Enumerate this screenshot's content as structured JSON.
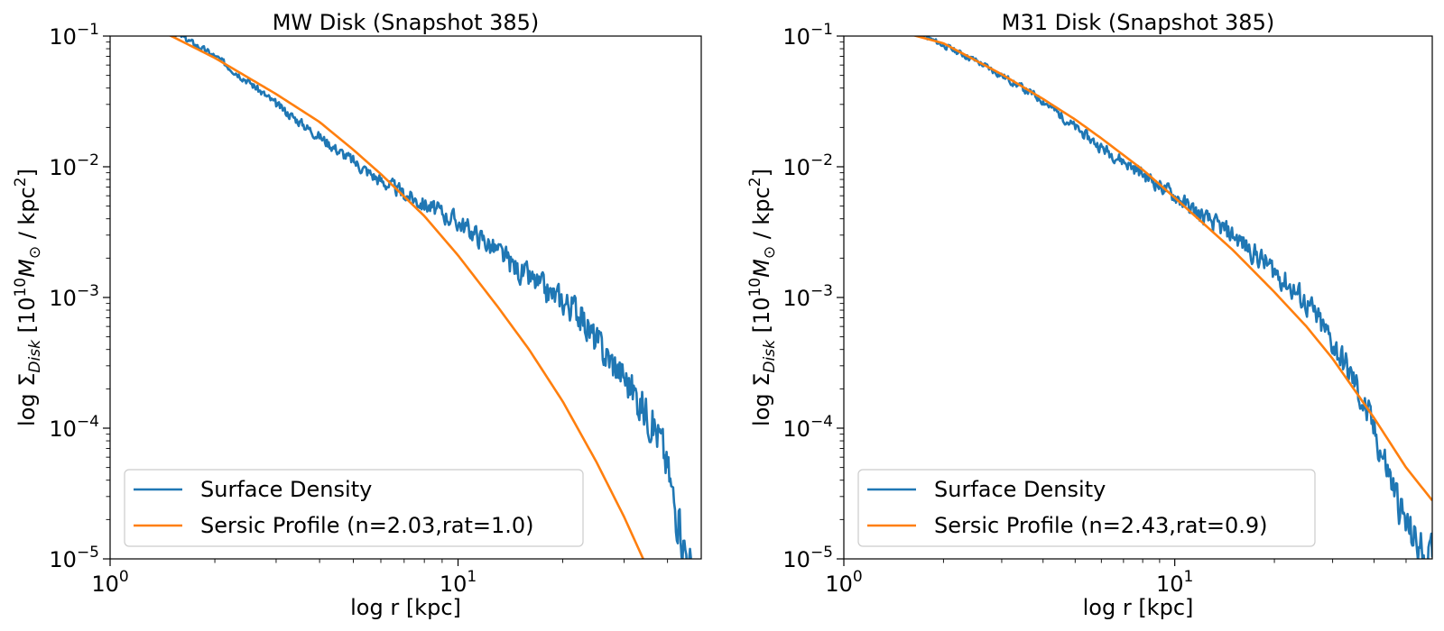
{
  "colors": {
    "density": "#1f77b4",
    "sersic": "#ff7f0e",
    "axes": "#000000",
    "legend_border": "#cccccc"
  },
  "chart_data": [
    {
      "type": "line",
      "title": "MW Disk (Snapshot 385)",
      "xlabel": "log r [kpc]",
      "ylabel": {
        "prefix": "log Σ",
        "sub1": "Disk",
        "mid": " [10",
        "sup1": "10",
        "m": "M",
        "sub2": "⊙",
        "mid2": " / kpc",
        "sup2": "2",
        "end": "]"
      },
      "xscale": "log",
      "yscale": "log",
      "xlim": [
        1,
        50
      ],
      "ylim": [
        1e-05,
        0.1
      ],
      "xticks": [
        {
          "value": 1,
          "base": "10",
          "exp": "0"
        },
        {
          "value": 10,
          "base": "10",
          "exp": "1"
        }
      ],
      "yticks": [
        {
          "value": 1e-05,
          "base": "10",
          "exp": "−5"
        },
        {
          "value": 0.0001,
          "base": "10",
          "exp": "−4"
        },
        {
          "value": 0.001,
          "base": "10",
          "exp": "−3"
        },
        {
          "value": 0.01,
          "base": "10",
          "exp": "−2"
        },
        {
          "value": 0.1,
          "base": "10",
          "exp": "−1"
        }
      ],
      "legend_position": "lower left",
      "series": [
        {
          "name": "Surface Density",
          "color_key": "density",
          "noise": 0.08,
          "seed": 3,
          "x": [
            1.0,
            1.3,
            1.6,
            2.0,
            2.5,
            3.0,
            4.0,
            5.0,
            6.0,
            6.5,
            7.0,
            8.0,
            10.0,
            12.0,
            15.0,
            18.0,
            20.0,
            22.0,
            25.0,
            30.0,
            35.0,
            38.0,
            40.0,
            42.0,
            45.0,
            47.0
          ],
          "y": [
            0.14,
            0.12,
            0.1,
            0.07,
            0.045,
            0.03,
            0.017,
            0.011,
            0.0078,
            0.007,
            0.0062,
            0.0052,
            0.0038,
            0.0027,
            0.0016,
            0.0011,
            0.00095,
            0.0008,
            0.00045,
            0.00025,
            0.00013,
            8.5e-05,
            5e-05,
            2.5e-05,
            1.2e-05,
            8e-06
          ]
        },
        {
          "name": "Sersic Profile (n=2.03,rat=1.0)",
          "color_key": "sersic",
          "noise": 0,
          "seed": 0,
          "x": [
            1.0,
            1.5,
            2.0,
            3.0,
            4.0,
            5.0,
            6.0,
            8.0,
            10.0,
            13.0,
            16.0,
            20.0,
            25.0,
            30.0,
            35.0,
            38.0
          ],
          "y": [
            0.15,
            0.1,
            0.068,
            0.036,
            0.022,
            0.0135,
            0.0088,
            0.0042,
            0.0021,
            0.00085,
            0.0004,
            0.00016,
            5.5e-05,
            2.1e-05,
            8.5e-06,
            5e-06
          ]
        }
      ]
    },
    {
      "type": "line",
      "title": "M31 Disk (Snapshot 385)",
      "xlabel": "log r [kpc]",
      "ylabel": {
        "prefix": "log Σ",
        "sub1": "Disk",
        "mid": " [10",
        "sup1": "10",
        "m": "M",
        "sub2": "⊙",
        "mid2": " / kpc",
        "sup2": "2",
        "end": "]"
      },
      "xscale": "log",
      "yscale": "log",
      "xlim": [
        1,
        60
      ],
      "ylim": [
        1e-05,
        0.1
      ],
      "xticks": [
        {
          "value": 1,
          "base": "10",
          "exp": "0"
        },
        {
          "value": 10,
          "base": "10",
          "exp": "1"
        }
      ],
      "yticks": [
        {
          "value": 1e-05,
          "base": "10",
          "exp": "−5"
        },
        {
          "value": 0.0001,
          "base": "10",
          "exp": "−4"
        },
        {
          "value": 0.001,
          "base": "10",
          "exp": "−3"
        },
        {
          "value": 0.01,
          "base": "10",
          "exp": "−2"
        },
        {
          "value": 0.1,
          "base": "10",
          "exp": "−1"
        }
      ],
      "legend_position": "lower left",
      "series": [
        {
          "name": "Surface Density",
          "color_key": "density",
          "noise": 0.07,
          "seed": 11,
          "x": [
            1.0,
            1.5,
            2.0,
            2.5,
            3.0,
            4.0,
            5.0,
            6.0,
            7.0,
            8.0,
            10.0,
            12.0,
            15.0,
            20.0,
            25.0,
            30.0,
            35.0,
            40.0,
            45.0,
            50.0,
            55.0,
            60.0
          ],
          "y": [
            0.15,
            0.12,
            0.085,
            0.065,
            0.05,
            0.032,
            0.02,
            0.014,
            0.011,
            0.0088,
            0.006,
            0.0042,
            0.003,
            0.0016,
            0.0009,
            0.00045,
            0.00022,
            9.5e-05,
            4e-05,
            1.8e-05,
            1.2e-05,
            1e-05
          ]
        },
        {
          "name": "Sersic Profile (n=2.43,rat=0.9)",
          "color_key": "sersic",
          "noise": 0,
          "seed": 0,
          "x": [
            1.0,
            1.5,
            2.0,
            3.0,
            4.0,
            5.0,
            6.0,
            8.0,
            10.0,
            15.0,
            20.0,
            25.0,
            30.0,
            40.0,
            50.0,
            60.0
          ],
          "y": [
            0.13,
            0.107,
            0.088,
            0.051,
            0.033,
            0.023,
            0.0165,
            0.0095,
            0.0058,
            0.0023,
            0.0011,
            0.0006,
            0.00034,
            0.00012,
            5e-05,
            2.8e-05
          ]
        }
      ]
    }
  ]
}
